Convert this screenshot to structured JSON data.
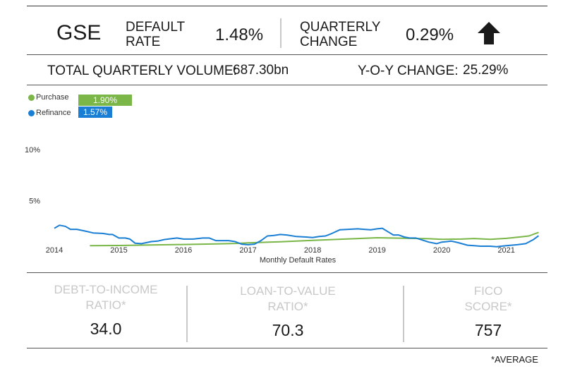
{
  "header": {
    "entity": "GSE",
    "default_rate_label_line1": "DEFAULT",
    "default_rate_label_line2": "RATE",
    "default_rate_value": "1.48%",
    "quarterly_change_label_line1": "QUARTERLY",
    "quarterly_change_label_line2": "CHANGE",
    "quarterly_change_value": "0.29%",
    "trend_icon": "arrow-up-icon"
  },
  "volume_row": {
    "total_label": "TOTAL QUARTERLY VOLUME:",
    "total_value": "687.30bn",
    "yoy_label": "Y-O-Y CHANGE:",
    "yoy_value": "25.29%"
  },
  "chart_data": {
    "type": "line",
    "xlabel": "Monthly Default Rates",
    "ylabel": "",
    "xlim": [
      2014.0,
      2021.55
    ],
    "ylim": [
      0,
      10
    ],
    "y_ticks": [
      "5%",
      "10%"
    ],
    "x_ticks": [
      "2014",
      "2015",
      "2016",
      "2017",
      "2018",
      "2019",
      "2020",
      "2021"
    ],
    "grid": false,
    "legend_position": "top-left",
    "series": [
      {
        "name": "Purchase",
        "color": "#7ab648",
        "latest_label": "1.90%",
        "points": [
          [
            2014.55,
            0.6
          ],
          [
            2015.0,
            0.62
          ],
          [
            2015.5,
            0.67
          ],
          [
            2016.0,
            0.72
          ],
          [
            2016.5,
            0.78
          ],
          [
            2016.8,
            0.82
          ],
          [
            2017.0,
            0.88
          ],
          [
            2017.5,
            0.98
          ],
          [
            2018.0,
            1.12
          ],
          [
            2018.5,
            1.25
          ],
          [
            2019.0,
            1.38
          ],
          [
            2019.5,
            1.32
          ],
          [
            2019.8,
            1.28
          ],
          [
            2020.0,
            1.22
          ],
          [
            2020.3,
            1.25
          ],
          [
            2020.5,
            1.3
          ],
          [
            2020.75,
            1.22
          ],
          [
            2021.0,
            1.32
          ],
          [
            2021.2,
            1.45
          ],
          [
            2021.35,
            1.55
          ],
          [
            2021.5,
            1.9
          ]
        ]
      },
      {
        "name": "Refinance",
        "color": "#1a7fd4",
        "latest_label": "1.57%",
        "points": [
          [
            2014.0,
            2.3
          ],
          [
            2014.08,
            2.6
          ],
          [
            2014.17,
            2.5
          ],
          [
            2014.25,
            2.2
          ],
          [
            2014.35,
            2.2
          ],
          [
            2014.5,
            2.0
          ],
          [
            2014.6,
            1.85
          ],
          [
            2014.75,
            1.8
          ],
          [
            2014.85,
            1.7
          ],
          [
            2014.9,
            1.7
          ],
          [
            2015.0,
            1.35
          ],
          [
            2015.1,
            1.35
          ],
          [
            2015.17,
            1.25
          ],
          [
            2015.25,
            0.85
          ],
          [
            2015.35,
            0.8
          ],
          [
            2015.5,
            1.0
          ],
          [
            2015.6,
            1.05
          ],
          [
            2015.7,
            1.2
          ],
          [
            2015.83,
            1.3
          ],
          [
            2015.9,
            1.35
          ],
          [
            2016.0,
            1.25
          ],
          [
            2016.15,
            1.25
          ],
          [
            2016.3,
            1.35
          ],
          [
            2016.4,
            1.35
          ],
          [
            2016.5,
            1.1
          ],
          [
            2016.7,
            1.1
          ],
          [
            2016.8,
            1.0
          ],
          [
            2016.9,
            0.75
          ],
          [
            2017.0,
            0.7
          ],
          [
            2017.1,
            0.75
          ],
          [
            2017.2,
            1.1
          ],
          [
            2017.3,
            1.55
          ],
          [
            2017.4,
            1.6
          ],
          [
            2017.5,
            1.7
          ],
          [
            2017.6,
            1.65
          ],
          [
            2017.75,
            1.5
          ],
          [
            2017.9,
            1.45
          ],
          [
            2018.0,
            1.4
          ],
          [
            2018.1,
            1.5
          ],
          [
            2018.2,
            1.55
          ],
          [
            2018.3,
            1.8
          ],
          [
            2018.42,
            2.15
          ],
          [
            2018.55,
            2.2
          ],
          [
            2018.7,
            2.25
          ],
          [
            2018.8,
            2.2
          ],
          [
            2018.9,
            2.15
          ],
          [
            2019.0,
            2.25
          ],
          [
            2019.08,
            2.3
          ],
          [
            2019.17,
            1.95
          ],
          [
            2019.25,
            1.65
          ],
          [
            2019.33,
            1.65
          ],
          [
            2019.42,
            1.45
          ],
          [
            2019.5,
            1.35
          ],
          [
            2019.6,
            1.35
          ],
          [
            2019.7,
            1.15
          ],
          [
            2019.8,
            0.95
          ],
          [
            2019.92,
            0.8
          ],
          [
            2020.0,
            0.95
          ],
          [
            2020.15,
            1.05
          ],
          [
            2020.25,
            0.9
          ],
          [
            2020.4,
            0.65
          ],
          [
            2020.5,
            0.6
          ],
          [
            2020.6,
            0.55
          ],
          [
            2020.75,
            0.55
          ],
          [
            2020.85,
            0.5
          ],
          [
            2020.92,
            0.55
          ],
          [
            2021.0,
            0.6
          ],
          [
            2021.17,
            0.7
          ],
          [
            2021.3,
            0.8
          ],
          [
            2021.42,
            1.2
          ],
          [
            2021.5,
            1.57
          ]
        ]
      }
    ]
  },
  "stats": [
    {
      "label_line1": "DEBT-TO-INCOME",
      "label_line2": "RATIO*",
      "value": "34.0"
    },
    {
      "label_line1": "LOAN-TO-VALUE",
      "label_line2": "RATIO*",
      "value": "70.3"
    },
    {
      "label_line1": "FICO",
      "label_line2": "SCORE*",
      "value": "757"
    }
  ],
  "footnote": "*AVERAGE"
}
